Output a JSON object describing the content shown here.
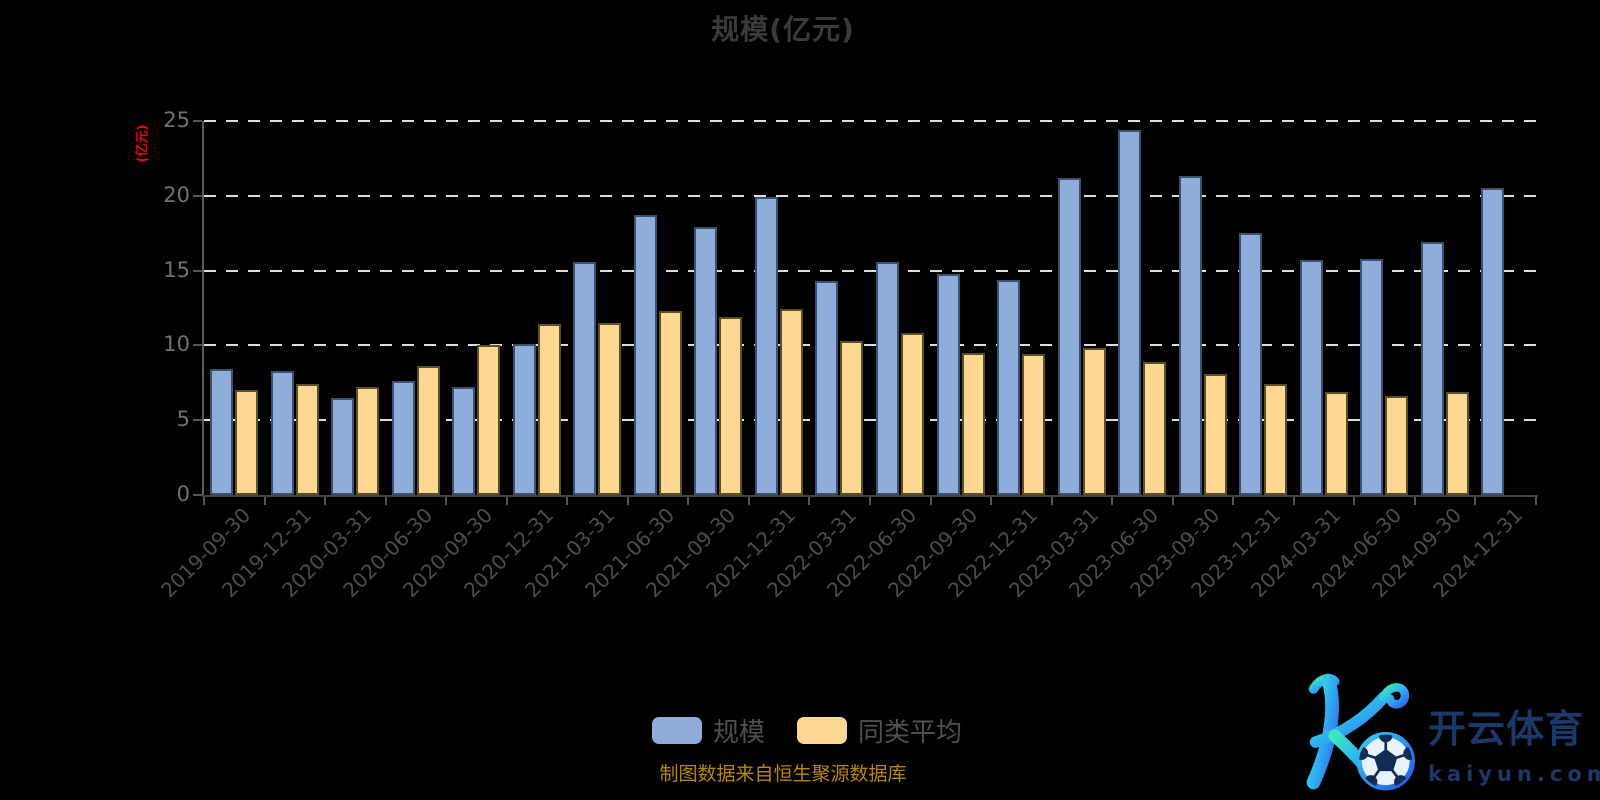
{
  "title": "规模(亿元)",
  "y_axis": {
    "name": "(亿元)",
    "name_color": "#ff0000",
    "tick_values": [
      0,
      5,
      10,
      15,
      20,
      25
    ],
    "tick_labels": [
      "0",
      "5",
      "10",
      "15",
      "20",
      "25"
    ]
  },
  "legend": {
    "items": [
      {
        "key": "scale",
        "label": "规模",
        "color": "#8fadda"
      },
      {
        "key": "peer_average",
        "label": "同类平均",
        "color": "#fcd892"
      }
    ]
  },
  "source_note": "制图数据来自恒生聚源数据库",
  "logo": {
    "brand": "开云体育",
    "domain": "kaiyun.com",
    "mark": "stylized-K-with-soccer-ball"
  },
  "colors": {
    "background": "#000000",
    "title": "#3a3a3a",
    "grid_dash": "#dcdcdc",
    "scale_fill": "#8fadda",
    "scale_border": "#3c5070",
    "peer_fill": "#fcd892",
    "peer_border": "#5c4e26",
    "source_text": "#b8860b"
  },
  "chart_data": {
    "type": "bar",
    "title": "规模(亿元)",
    "ylabel": "(亿元)",
    "ylim": [
      0,
      25
    ],
    "grid": "dashed-horizontal",
    "legend_position": "bottom-center",
    "categories": [
      "2019-09-30",
      "2019-12-31",
      "2020-03-31",
      "2020-06-30",
      "2020-09-30",
      "2020-12-31",
      "2021-03-31",
      "2021-06-30",
      "2021-09-30",
      "2021-12-31",
      "2022-03-31",
      "2022-06-30",
      "2022-09-30",
      "2022-12-31",
      "2023-03-31",
      "2023-06-30",
      "2023-09-30",
      "2023-12-31",
      "2024-03-31",
      "2024-06-30",
      "2024-09-30",
      "2024-12-31"
    ],
    "series": [
      {
        "key": "scale",
        "name": "规模",
        "color": "#8fadda",
        "border": "#3c5070",
        "values": [
          8.4,
          8.3,
          6.5,
          7.6,
          7.2,
          10.1,
          15.6,
          18.7,
          17.9,
          19.9,
          14.3,
          15.6,
          14.8,
          14.4,
          21.2,
          24.4,
          21.3,
          17.5,
          15.7,
          15.8,
          16.9,
          20.5
        ]
      },
      {
        "key": "peer_average",
        "name": "同类平均",
        "color": "#fcd892",
        "border": "#5c4e26",
        "values": [
          7.0,
          7.4,
          7.2,
          8.6,
          10.0,
          11.4,
          11.5,
          12.3,
          11.9,
          12.4,
          10.3,
          10.8,
          9.5,
          9.4,
          9.8,
          8.9,
          8.1,
          7.4,
          6.9,
          6.6,
          6.9,
          null
        ]
      }
    ]
  }
}
